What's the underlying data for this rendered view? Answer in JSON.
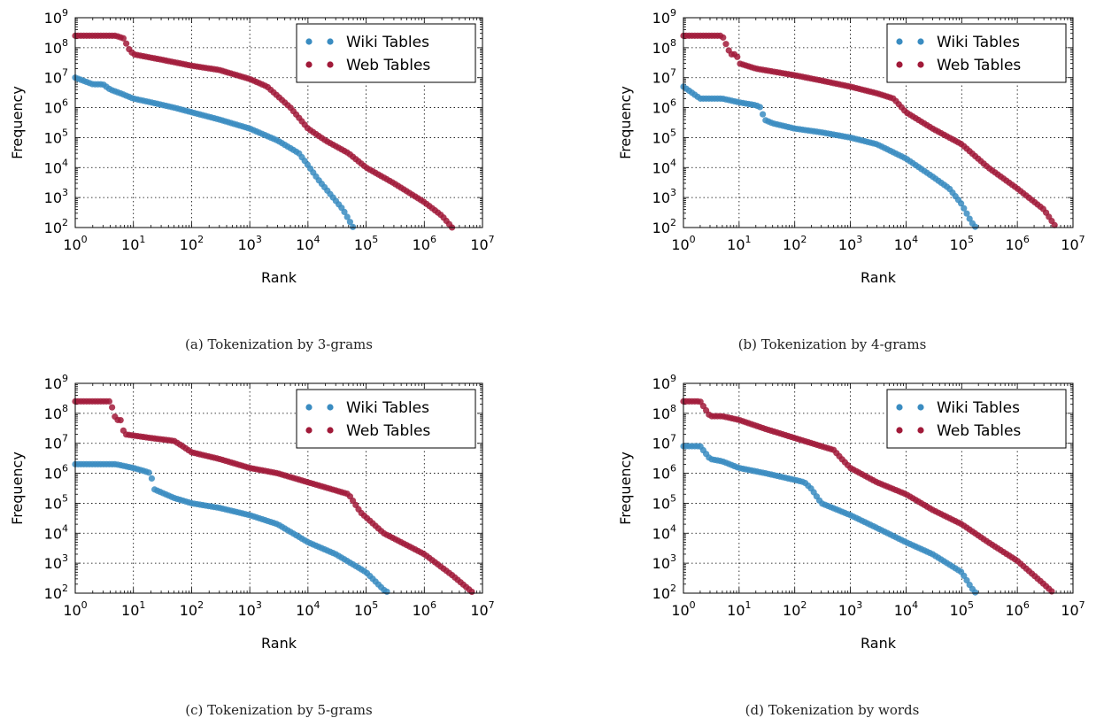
{
  "figure": {
    "captions": [
      "(a) Tokenization by 3-grams",
      "(b) Tokenization by 4-grams",
      "(c) Tokenization by 5-grams",
      "(d) Tokenization by words"
    ]
  },
  "colors": {
    "wiki": "#3a8cc1",
    "web": "#a11a39",
    "grid": "#000000"
  },
  "chart_data": [
    {
      "type": "scatter",
      "title": "(a) Tokenization by 3-grams",
      "xlabel": "Rank",
      "ylabel": "Frequency",
      "xscale": "log",
      "yscale": "log",
      "xlim": [
        1,
        10000000
      ],
      "ylim": [
        100,
        1000000000
      ],
      "x_ticks": [
        "10^0",
        "10^1",
        "10^2",
        "10^3",
        "10^4",
        "10^5",
        "10^6",
        "10^7"
      ],
      "y_ticks": [
        "10^2",
        "10^3",
        "10^4",
        "10^5",
        "10^6",
        "10^7",
        "10^8",
        "10^9"
      ],
      "grid": true,
      "legend": "top-right",
      "series": [
        {
          "name": "Wiki Tables",
          "points": [
            [
              1,
              10000000
            ],
            [
              2,
              6000000
            ],
            [
              3,
              6000000
            ],
            [
              4,
              4000000
            ],
            [
              6,
              3000000
            ],
            [
              10,
              2000000
            ],
            [
              20,
              1500000
            ],
            [
              50,
              1000000
            ],
            [
              100,
              700000
            ],
            [
              300,
              400000
            ],
            [
              1000,
              200000
            ],
            [
              3000,
              80000
            ],
            [
              7000,
              30000
            ],
            [
              10000,
              12000
            ],
            [
              15000,
              4000
            ],
            [
              25000,
              1200
            ],
            [
              40000,
              400
            ],
            [
              60000,
              100
            ]
          ]
        },
        {
          "name": "Web Tables",
          "points": [
            [
              1,
              250000000
            ],
            [
              2,
              250000000
            ],
            [
              3,
              250000000
            ],
            [
              5,
              250000000
            ],
            [
              7,
              200000000
            ],
            [
              8,
              100000000
            ],
            [
              10,
              60000000
            ],
            [
              30,
              40000000
            ],
            [
              100,
              25000000
            ],
            [
              300,
              18000000
            ],
            [
              1000,
              9000000
            ],
            [
              2000,
              5000000
            ],
            [
              5000,
              1000000
            ],
            [
              10000,
              200000
            ],
            [
              20000,
              80000
            ],
            [
              50000,
              30000
            ],
            [
              100000,
              10000
            ],
            [
              300000,
              3000
            ],
            [
              1000000,
              700
            ],
            [
              2000000,
              250
            ],
            [
              3000000,
              100
            ]
          ]
        }
      ]
    },
    {
      "type": "scatter",
      "title": "(b) Tokenization by 4-grams",
      "xlabel": "Rank",
      "ylabel": "Frequency",
      "xscale": "log",
      "yscale": "log",
      "xlim": [
        1,
        10000000
      ],
      "ylim": [
        100,
        1000000000
      ],
      "x_ticks": [
        "10^0",
        "10^1",
        "10^2",
        "10^3",
        "10^4",
        "10^5",
        "10^6",
        "10^7"
      ],
      "y_ticks": [
        "10^2",
        "10^3",
        "10^4",
        "10^5",
        "10^6",
        "10^7",
        "10^8",
        "10^9"
      ],
      "grid": true,
      "legend": "top-right",
      "series": [
        {
          "name": "Wiki Tables",
          "points": [
            [
              1,
              5000000
            ],
            [
              2,
              2000000
            ],
            [
              3,
              2000000
            ],
            [
              5,
              2000000
            ],
            [
              10,
              1500000
            ],
            [
              20,
              1200000
            ],
            [
              25,
              1000000
            ],
            [
              28,
              400000
            ],
            [
              40,
              300000
            ],
            [
              100,
              200000
            ],
            [
              300,
              150000
            ],
            [
              1000,
              100000
            ],
            [
              3000,
              60000
            ],
            [
              10000,
              20000
            ],
            [
              30000,
              5000
            ],
            [
              60000,
              2000
            ],
            [
              100000,
              600
            ],
            [
              150000,
              150
            ],
            [
              180000,
              100
            ]
          ]
        },
        {
          "name": "Web Tables",
          "points": [
            [
              1,
              250000000
            ],
            [
              2,
              250000000
            ],
            [
              3,
              250000000
            ],
            [
              5,
              250000000
            ],
            [
              7,
              60000000
            ],
            [
              9,
              60000000
            ],
            [
              10,
              30000000
            ],
            [
              20,
              20000000
            ],
            [
              100,
              12000000
            ],
            [
              300,
              8000000
            ],
            [
              1000,
              5000000
            ],
            [
              3000,
              3000000
            ],
            [
              6000,
              2000000
            ],
            [
              10000,
              700000
            ],
            [
              30000,
              200000
            ],
            [
              100000,
              60000
            ],
            [
              300000,
              10000
            ],
            [
              1000000,
              2000
            ],
            [
              3000000,
              400
            ],
            [
              5000000,
              100
            ]
          ]
        }
      ]
    },
    {
      "type": "scatter",
      "title": "(c) Tokenization by 5-grams",
      "xlabel": "Rank",
      "ylabel": "Frequency",
      "xscale": "log",
      "yscale": "log",
      "xlim": [
        1,
        10000000
      ],
      "ylim": [
        100,
        1000000000
      ],
      "x_ticks": [
        "10^0",
        "10^1",
        "10^2",
        "10^3",
        "10^4",
        "10^5",
        "10^6",
        "10^7"
      ],
      "y_ticks": [
        "10^2",
        "10^3",
        "10^4",
        "10^5",
        "10^6",
        "10^7",
        "10^8",
        "10^9"
      ],
      "grid": true,
      "legend": "top-right",
      "series": [
        {
          "name": "Wiki Tables",
          "points": [
            [
              1,
              2000000
            ],
            [
              2,
              2000000
            ],
            [
              3,
              2000000
            ],
            [
              5,
              2000000
            ],
            [
              10,
              1500000
            ],
            [
              15,
              1200000
            ],
            [
              20,
              1000000
            ],
            [
              22,
              300000
            ],
            [
              50,
              150000
            ],
            [
              100,
              100000
            ],
            [
              300,
              70000
            ],
            [
              1000,
              40000
            ],
            [
              3000,
              20000
            ],
            [
              10000,
              5000
            ],
            [
              30000,
              2000
            ],
            [
              100000,
              500
            ],
            [
              200000,
              130
            ],
            [
              250000,
              100
            ]
          ]
        },
        {
          "name": "Web Tables",
          "points": [
            [
              1,
              250000000
            ],
            [
              2,
              250000000
            ],
            [
              3,
              250000000
            ],
            [
              4,
              250000000
            ],
            [
              5,
              60000000
            ],
            [
              6,
              60000000
            ],
            [
              7,
              20000000
            ],
            [
              20,
              15000000
            ],
            [
              50,
              12000000
            ],
            [
              70,
              8000000
            ],
            [
              100,
              5000000
            ],
            [
              300,
              3000000
            ],
            [
              1000,
              1500000
            ],
            [
              3000,
              1000000
            ],
            [
              10000,
              500000
            ],
            [
              50000,
              200000
            ],
            [
              80000,
              50000
            ],
            [
              200000,
              10000
            ],
            [
              1000000,
              2000
            ],
            [
              3000000,
              400
            ],
            [
              7000000,
              100
            ]
          ]
        }
      ]
    },
    {
      "type": "scatter",
      "title": "(d) Tokenization by words",
      "xlabel": "Rank",
      "ylabel": "Frequency",
      "xscale": "log",
      "yscale": "log",
      "xlim": [
        1,
        10000000
      ],
      "ylim": [
        100,
        1000000000
      ],
      "x_ticks": [
        "10^0",
        "10^1",
        "10^2",
        "10^3",
        "10^4",
        "10^5",
        "10^6",
        "10^7"
      ],
      "y_ticks": [
        "10^2",
        "10^3",
        "10^4",
        "10^5",
        "10^6",
        "10^7",
        "10^8",
        "10^9"
      ],
      "grid": true,
      "legend": "top-right",
      "series": [
        {
          "name": "Wiki Tables",
          "points": [
            [
              1,
              8000000
            ],
            [
              2,
              8000000
            ],
            [
              3,
              3000000
            ],
            [
              5,
              2500000
            ],
            [
              10,
              1500000
            ],
            [
              30,
              1000000
            ],
            [
              100,
              600000
            ],
            [
              150,
              500000
            ],
            [
              200,
              300000
            ],
            [
              300,
              100000
            ],
            [
              1000,
              40000
            ],
            [
              3000,
              15000
            ],
            [
              10000,
              5000
            ],
            [
              30000,
              2000
            ],
            [
              100000,
              500
            ],
            [
              150000,
              150
            ],
            [
              180000,
              100
            ]
          ]
        },
        {
          "name": "Web Tables",
          "points": [
            [
              1,
              250000000
            ],
            [
              2,
              250000000
            ],
            [
              3,
              80000000
            ],
            [
              5,
              80000000
            ],
            [
              10,
              60000000
            ],
            [
              30,
              30000000
            ],
            [
              100,
              15000000
            ],
            [
              300,
              8000000
            ],
            [
              500,
              6000000
            ],
            [
              700,
              3000000
            ],
            [
              1000,
              1500000
            ],
            [
              3000,
              500000
            ],
            [
              10000,
              200000
            ],
            [
              30000,
              60000
            ],
            [
              100000,
              20000
            ],
            [
              300000,
              5000
            ],
            [
              1000000,
              1200
            ],
            [
              3000000,
              200
            ],
            [
              4500000,
              100
            ]
          ]
        }
      ]
    }
  ]
}
